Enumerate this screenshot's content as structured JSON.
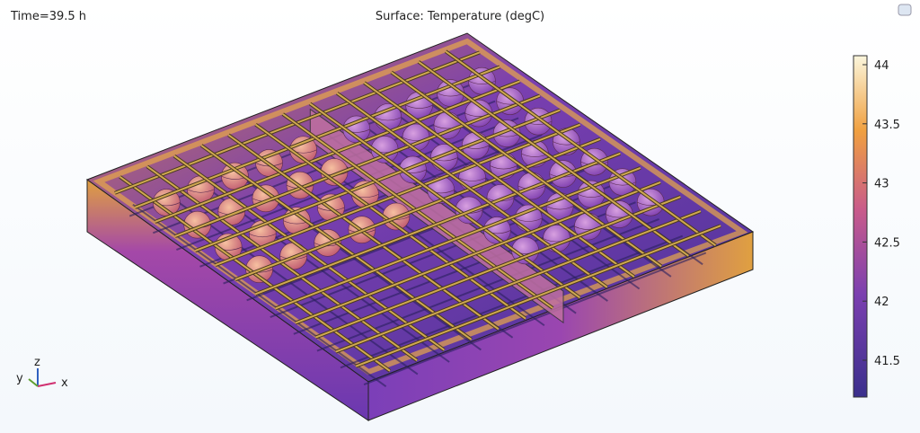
{
  "header": {
    "time": "Time=39.5 h",
    "title": "Surface: Temperature (degC)"
  },
  "colorbar": {
    "ticks": [
      44,
      43.5,
      43,
      42.5,
      42,
      41.5
    ]
  },
  "axes": {
    "z": "z",
    "y": "y",
    "x": "x"
  }
}
